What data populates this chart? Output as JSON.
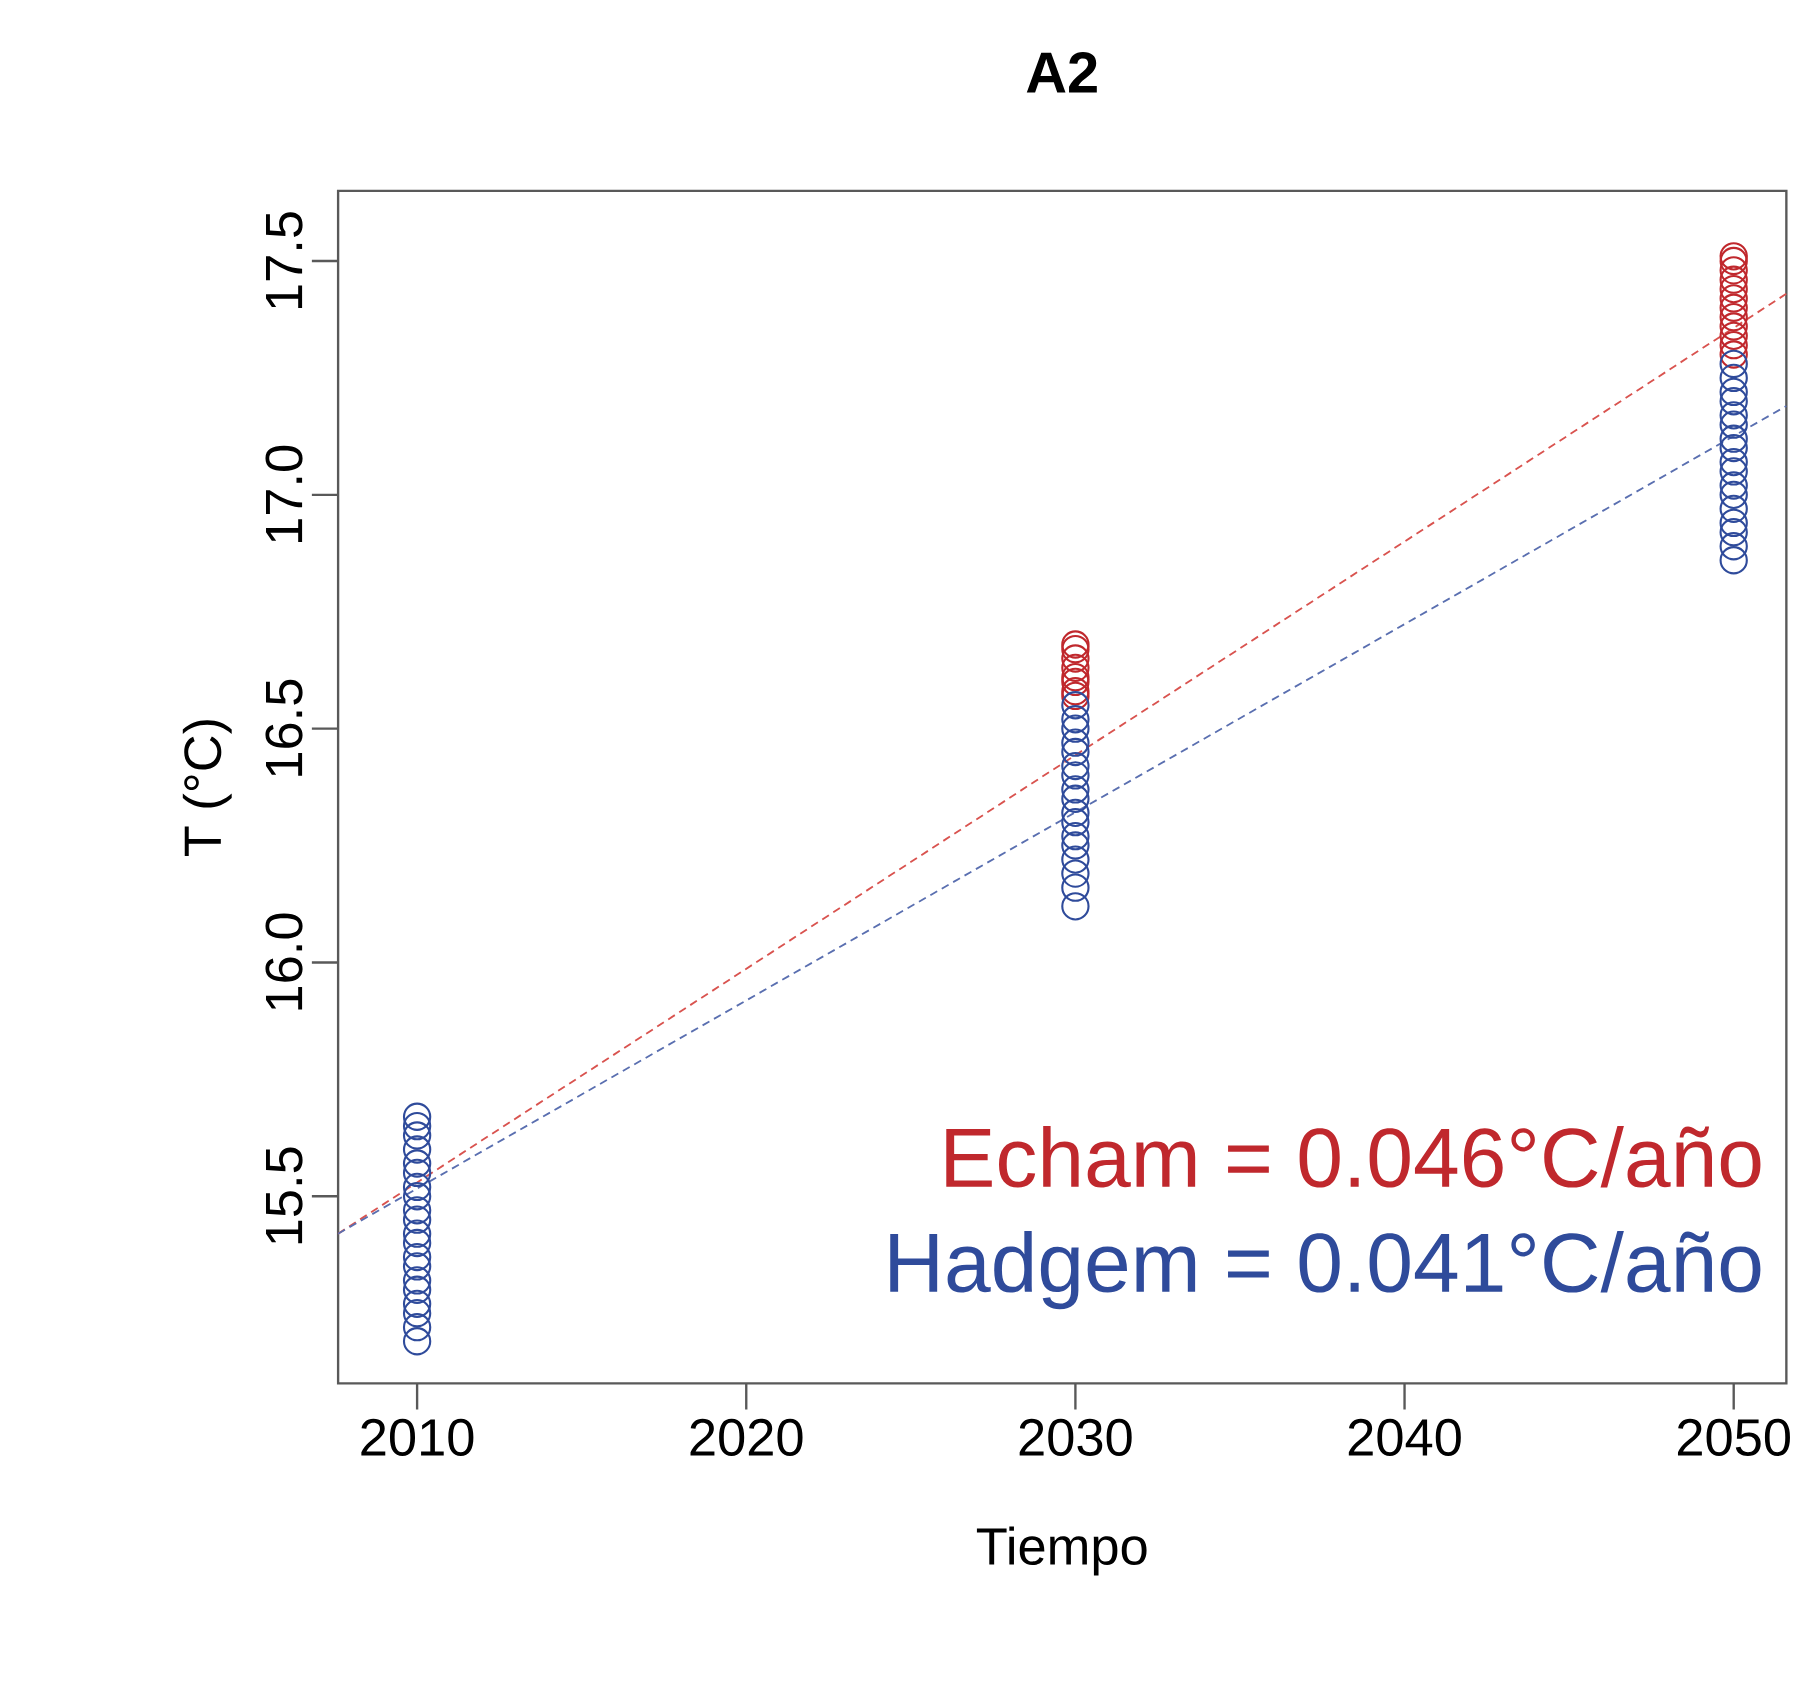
{
  "chart_data": {
    "type": "scatter",
    "title": "A2",
    "xlabel": "Tiempo",
    "ylabel": "T (°C)",
    "xlim": [
      2007.6,
      2051.6
    ],
    "ylim": [
      15.1,
      17.65
    ],
    "xticks": [
      2010,
      2020,
      2030,
      2040,
      2050
    ],
    "yticks": [
      15.5,
      {
        "value": 16,
        "label": "16.0"
      },
      16.5,
      {
        "value": 17,
        "label": "17.0"
      },
      17.5
    ],
    "marker": "circle",
    "series": [
      {
        "color": "#c0282d",
        "x": [
          2030,
          2030,
          2030,
          2030,
          2030,
          2030,
          2030,
          2030,
          2050,
          2050,
          2050,
          2050,
          2050,
          2050,
          2050,
          2050,
          2050,
          2050,
          2050,
          2050
        ],
        "values": [
          16.68,
          16.67,
          16.65,
          16.63,
          16.61,
          16.6,
          16.58,
          16.57,
          17.51,
          17.5,
          17.48,
          17.46,
          17.44,
          17.42,
          17.4,
          17.38,
          17.36,
          17.34,
          17.32,
          17.3
        ]
      },
      {
        "color": "#2f4b9b",
        "x": [
          2010,
          2010,
          2010,
          2010,
          2010,
          2010,
          2010,
          2010,
          2010,
          2010,
          2010,
          2010,
          2010,
          2010,
          2010,
          2010,
          2010,
          2010,
          2010,
          2010,
          2030,
          2030,
          2030,
          2030,
          2030,
          2030,
          2030,
          2030,
          2030,
          2030,
          2030,
          2030,
          2030,
          2030,
          2030,
          2030,
          2030,
          2050,
          2050,
          2050,
          2050,
          2050,
          2050,
          2050,
          2050,
          2050,
          2050,
          2050,
          2050,
          2050,
          2050,
          2050,
          2050,
          2050
        ],
        "values": [
          15.67,
          15.65,
          15.63,
          15.6,
          15.57,
          15.55,
          15.52,
          15.5,
          15.47,
          15.45,
          15.42,
          15.4,
          15.37,
          15.35,
          15.32,
          15.3,
          15.27,
          15.25,
          15.22,
          15.19,
          16.55,
          16.52,
          16.5,
          16.47,
          16.45,
          16.42,
          16.4,
          16.37,
          16.35,
          16.32,
          16.3,
          16.27,
          16.25,
          16.22,
          16.19,
          16.16,
          16.12,
          17.28,
          17.25,
          17.22,
          17.2,
          17.17,
          17.15,
          17.12,
          17.1,
          17.07,
          17.05,
          17.02,
          17.0,
          16.97,
          16.94,
          16.92,
          16.89,
          16.86
        ]
      },
      {
        "type": "line",
        "line_style": "dashed",
        "marker": "none",
        "color": "#d9534f",
        "x": [
          2007.6,
          2051.6
        ],
        "values": [
          15.42,
          17.43
        ]
      },
      {
        "type": "line",
        "line_style": "dashed",
        "marker": "none",
        "color": "#5a6fb0",
        "x": [
          2007.6,
          2051.6
        ],
        "values": [
          15.42,
          17.19
        ]
      }
    ],
    "annotations": [
      "Echam = 0.046°C/año",
      "Hadgem = 0.041°C/año"
    ]
  }
}
